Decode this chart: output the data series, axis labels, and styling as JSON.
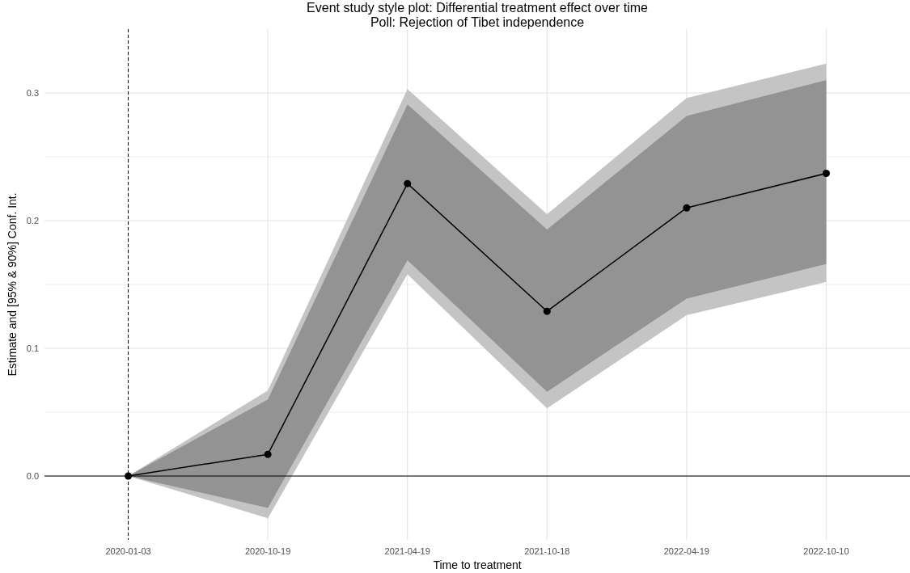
{
  "chart_data": {
    "type": "line",
    "title": "Event study style plot: Differential treatment effect over time",
    "subtitle": "Poll: Rejection of Tibet independence",
    "xlabel": "Time to treatment",
    "ylabel": "Estimate and [95% & 90%] Conf. Int.",
    "categories": [
      "2020-01-03",
      "2020-10-19",
      "2021-04-19",
      "2021-10-18",
      "2022-04-19",
      "2022-10-10"
    ],
    "series": [
      {
        "color": "#c4c4c4",
        "marker": "none",
        "values": [
          null,
          null,
          null,
          null,
          null,
          null
        ],
        "lower": [
          0,
          -0.033,
          0.158,
          0.053,
          0.126,
          0.152
        ],
        "upper": [
          0,
          0.067,
          0.303,
          0.205,
          0.296,
          0.323
        ]
      },
      {
        "color": "#000000",
        "marker": "circle",
        "values": [
          0,
          0.017,
          0.229,
          0.129,
          0.21,
          0.237
        ],
        "lower": [
          0,
          -0.025,
          0.169,
          0.066,
          0.139,
          0.166
        ],
        "upper": [
          0,
          0.06,
          0.291,
          0.193,
          0.282,
          0.31
        ]
      }
    ],
    "ylim": [
      -0.05,
      0.35
    ],
    "yticks": [
      {
        "value": 0,
        "label": "0.0"
      },
      {
        "value": 0.05,
        "label": null
      },
      0.1,
      {
        "value": 0.15,
        "label": null
      },
      0.2,
      {
        "value": 0.25,
        "label": null
      },
      0.3
    ],
    "grid": true,
    "ref_lines": [
      {
        "axis": "x",
        "value": "2020-01-03",
        "color": "#000000",
        "line_style": "dashed"
      },
      {
        "axis": "y",
        "value": 0,
        "color": "#000000",
        "line_style": "solid"
      }
    ]
  }
}
